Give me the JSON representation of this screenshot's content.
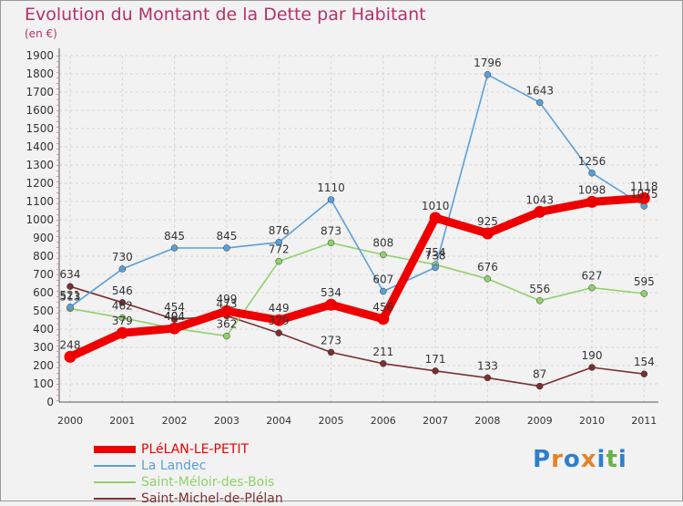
{
  "header": {
    "title": "Evolution du Montant de la Dette par Habitant",
    "unit": "(en €)"
  },
  "logo": {
    "text": "Proxiti",
    "letter_colors": [
      "#2f7fc8",
      "#e5822b",
      "#2f7fc8",
      "#e5822b",
      "#2f7fc8",
      "#6ab04c",
      "#2f7fc8"
    ]
  },
  "chart_data": {
    "type": "line",
    "title": "Evolution du Montant de la Dette par Habitant",
    "ylabel": "(en €)",
    "xlabel": "",
    "x": [
      "2000",
      "2001",
      "2002",
      "2003",
      "2004",
      "2005",
      "2006",
      "2007",
      "2008",
      "2009",
      "2010",
      "2011"
    ],
    "ylim": [
      0,
      1900
    ],
    "yticks": [
      0,
      100,
      200,
      300,
      400,
      500,
      600,
      700,
      800,
      900,
      1000,
      1100,
      1200,
      1300,
      1400,
      1500,
      1600,
      1700,
      1800,
      1900
    ],
    "grid": true,
    "legend_position": "bottom-left",
    "series": [
      {
        "name": "PLéLAN-LE-PETIT",
        "color": "#ee0000",
        "values": [
          248,
          379,
          404,
          499,
          449,
          534,
          456,
          1010,
          925,
          1043,
          1098,
          1118
        ],
        "labels": [
          "248",
          "379",
          "404",
          "499",
          "449",
          "534",
          "456",
          "1010",
          "925",
          "1043",
          "1098",
          "1118"
        ]
      },
      {
        "name": "La Landec",
        "color": "#5b9fd6",
        "values": [
          521,
          730,
          845,
          845,
          876,
          1110,
          607,
          738,
          1796,
          1643,
          1256,
          1075
        ],
        "labels": [
          "521",
          "730",
          "845",
          "845",
          "876",
          "1110",
          "607",
          "738",
          "1796",
          "1643",
          "1256",
          "1075"
        ]
      },
      {
        "name": "Saint-Méloir-des-Bois",
        "color": "#8fd16c",
        "values": [
          513,
          462,
          404,
          362,
          772,
          873,
          808,
          754,
          676,
          556,
          627,
          595
        ],
        "labels": [
          "513",
          "462",
          "404",
          "362",
          "772",
          "873",
          "808",
          "754",
          "676",
          "556",
          "627",
          "595"
        ]
      },
      {
        "name": "Saint-Michel-de-Plélan",
        "color": "#7a3030",
        "values": [
          634,
          546,
          454,
          473,
          379,
          273,
          211,
          171,
          133,
          87,
          190,
          154
        ],
        "labels": [
          "634",
          "546",
          "454",
          "473",
          "379",
          "273",
          "211",
          "171",
          "133",
          "87",
          "190",
          "154"
        ]
      }
    ]
  }
}
